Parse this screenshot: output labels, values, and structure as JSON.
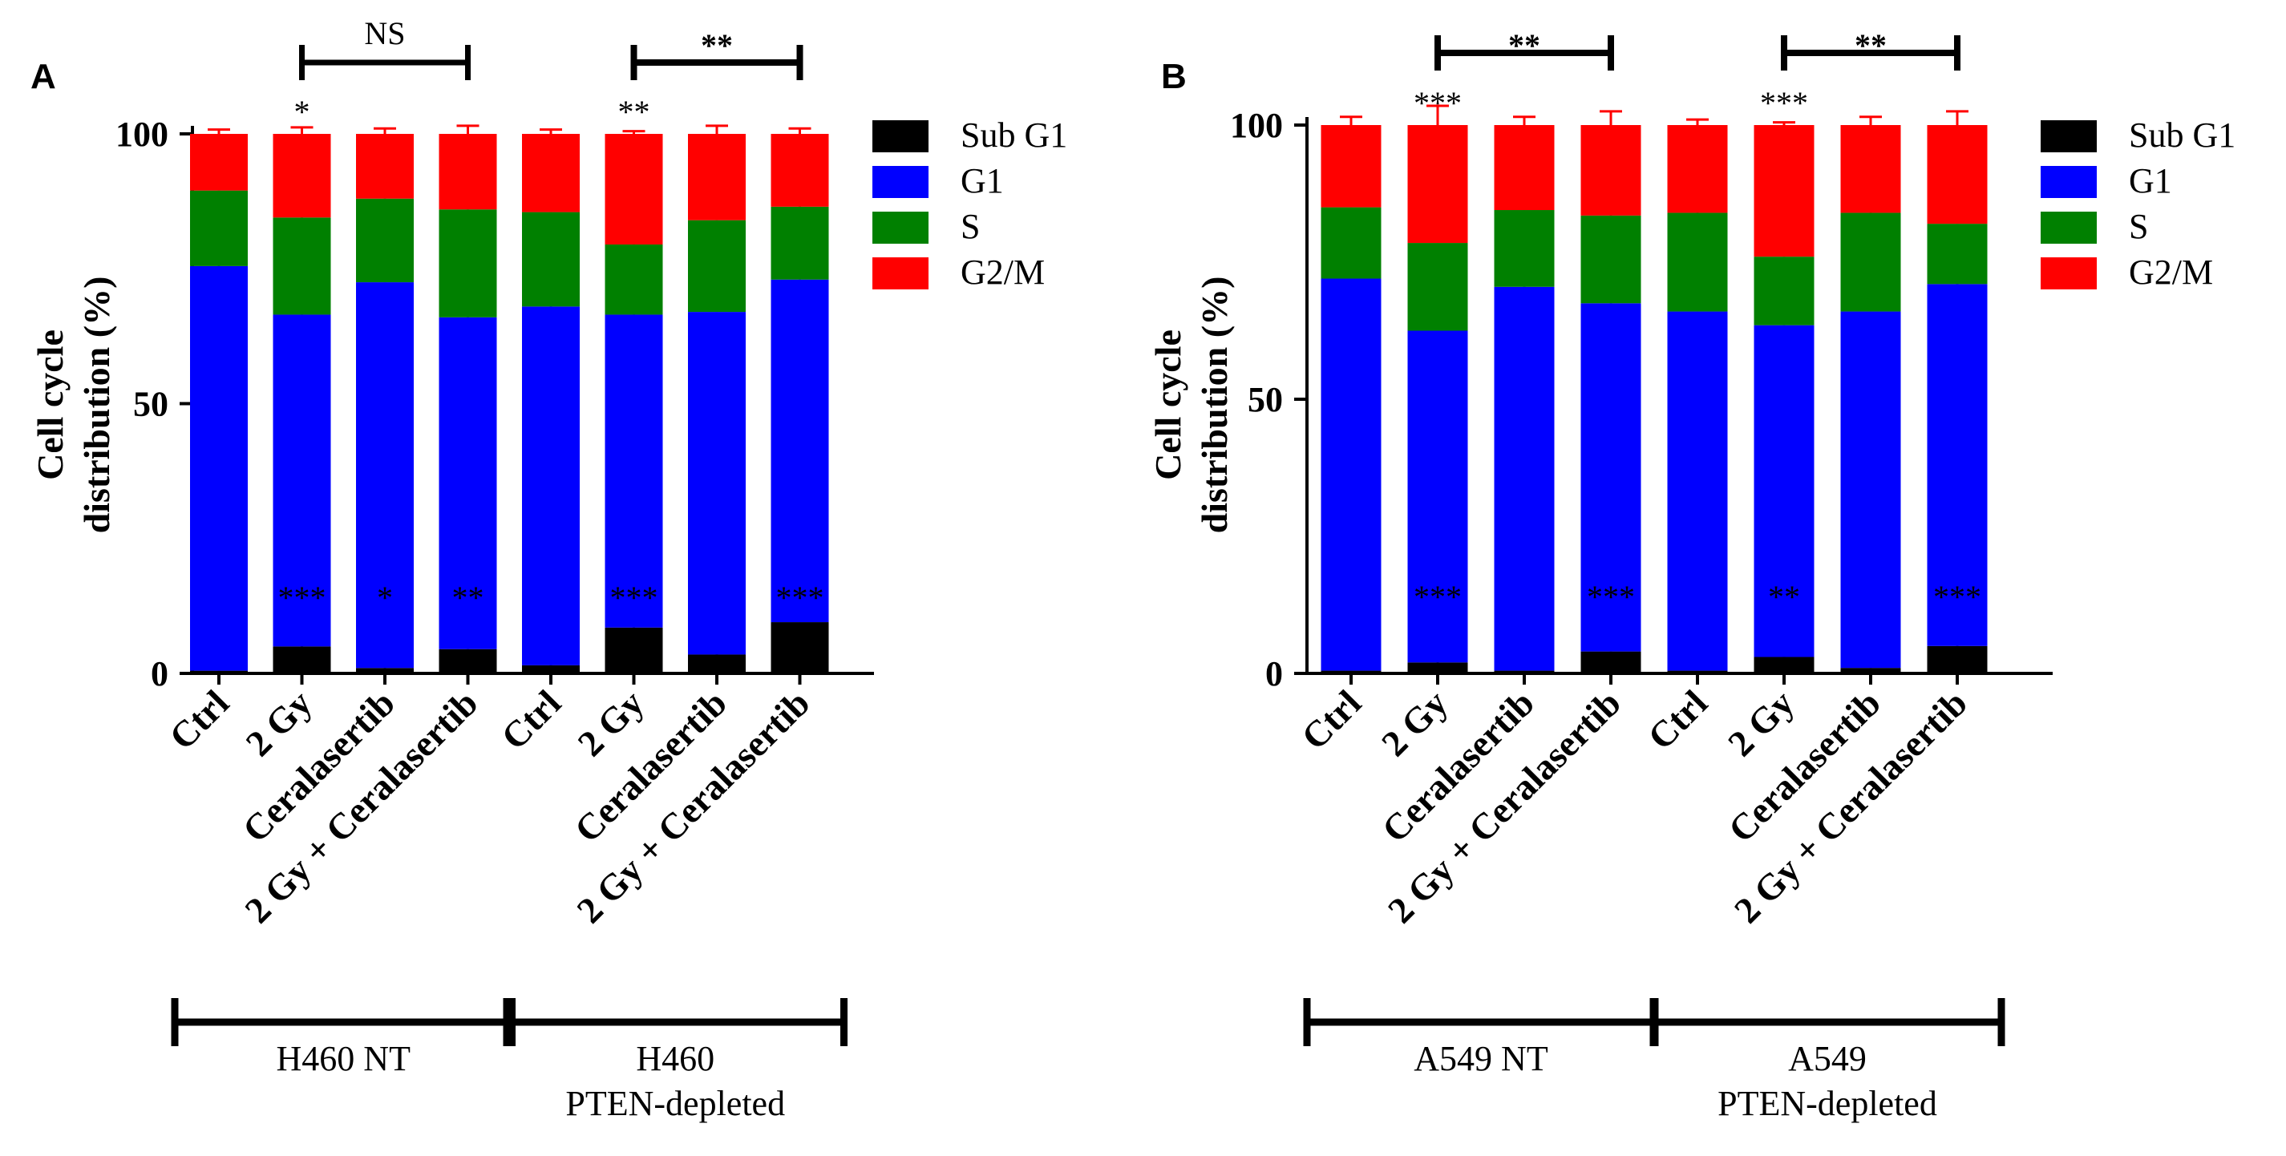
{
  "colors": {
    "Sub G1": "#000000",
    "G1": "#0000ff",
    "S": "#008000",
    "G2/M": "#ff0000"
  },
  "legend": [
    "Sub G1",
    "G1",
    "S",
    "G2/M"
  ],
  "chart_data": [
    {
      "panel": "A",
      "type": "bar",
      "stacked": true,
      "ylabel": [
        "Cell cycle",
        "distribution (%)"
      ],
      "ylim": [
        0,
        100
      ],
      "yticks": [
        0,
        50,
        100
      ],
      "legend_position": "top-right",
      "categories": [
        "Ctrl",
        "2 Gy",
        "Ceralasertib",
        "2 Gy + Ceralasertib",
        "Ctrl",
        "2 Gy",
        "Ceralasertib",
        "2 Gy + Ceralasertib"
      ],
      "series": [
        {
          "name": "Sub G1",
          "values": [
            0.5,
            5,
            1,
            4.5,
            1.5,
            8.5,
            3.5,
            9.5
          ],
          "errors": [
            0.5,
            0.8,
            0.5,
            1.2,
            0.3,
            1.2,
            0.4,
            1.5
          ]
        },
        {
          "name": "G1",
          "values": [
            75,
            61.5,
            71.5,
            61.5,
            66.5,
            58,
            63.5,
            63.5
          ],
          "errors": [
            2.5,
            1.5,
            1.2,
            1.3,
            1.5,
            1.2,
            1.5,
            0.8
          ]
        },
        {
          "name": "S",
          "values": [
            14,
            18,
            15.5,
            20,
            17.5,
            13,
            17,
            13.5
          ],
          "errors": [
            1.5,
            1.0,
            1.0,
            0.8,
            0.8,
            1.5,
            0.5,
            0.5
          ]
        },
        {
          "name": "G2/M",
          "values": [
            10.5,
            15.5,
            12,
            14,
            14.5,
            20.5,
            16,
            13.5
          ],
          "errors": [
            0.8,
            1.2,
            1.0,
            1.5,
            0.8,
            0.5,
            1.5,
            1.0
          ]
        }
      ],
      "top_sig": [
        "",
        "*",
        "",
        "",
        "",
        "**",
        "",
        ""
      ],
      "bottom_sig": [
        "",
        "***",
        "*",
        "**",
        "",
        "***",
        "",
        "***"
      ],
      "brackets": [
        {
          "from": 1,
          "to": 3,
          "label": "NS",
          "bold": false
        },
        {
          "from": 5,
          "to": 7,
          "label": "**",
          "bold": true
        }
      ],
      "groups": [
        {
          "from": 0,
          "to": 3,
          "label": [
            "H460 NT"
          ]
        },
        {
          "from": 4,
          "to": 7,
          "label": [
            "H460",
            "PTEN-depleted"
          ]
        }
      ]
    },
    {
      "panel": "B",
      "type": "bar",
      "stacked": true,
      "ylabel": [
        "Cell cycle",
        "distribution (%)"
      ],
      "ylim": [
        0,
        100
      ],
      "yticks": [
        0,
        50,
        100
      ],
      "legend_position": "top-right",
      "categories": [
        "Ctrl",
        "2 Gy",
        "Ceralasertib",
        "2 Gy + Ceralasertib",
        "Ctrl",
        "2 Gy",
        "Ceralasertib",
        "2 Gy + Ceralasertib"
      ],
      "series": [
        {
          "name": "Sub G1",
          "values": [
            0.5,
            2,
            0.5,
            4,
            0.5,
            3,
            1,
            5
          ],
          "errors": [
            1.5,
            0.8,
            1.0,
            0.5,
            2.5,
            0.8,
            1.0,
            1.5
          ]
        },
        {
          "name": "G1",
          "values": [
            71.5,
            60.5,
            70,
            63.5,
            65.5,
            60.5,
            65,
            66
          ],
          "errors": [
            0.5,
            1.5,
            0.8,
            1.0,
            3.0,
            0.5,
            1.0,
            2.0
          ]
        },
        {
          "name": "S",
          "values": [
            13,
            16,
            14,
            16,
            18,
            12.5,
            18,
            11
          ],
          "errors": [
            0.5,
            1.5,
            0.5,
            1.0,
            0.5,
            2.0,
            2.0,
            1.0
          ]
        },
        {
          "name": "G2/M",
          "values": [
            15,
            21.5,
            15.5,
            16.5,
            16,
            24,
            16,
            18
          ],
          "errors": [
            1.5,
            3.5,
            1.5,
            2.5,
            1.0,
            0.5,
            1.5,
            2.5
          ]
        }
      ],
      "top_sig": [
        "",
        "***",
        "",
        "",
        "",
        "***",
        "",
        ""
      ],
      "bottom_sig": [
        "",
        "***",
        "",
        "***",
        "",
        "**",
        "",
        "***"
      ],
      "brackets": [
        {
          "from": 1,
          "to": 3,
          "label": "**",
          "bold": true
        },
        {
          "from": 5,
          "to": 7,
          "label": "**",
          "bold": true
        }
      ],
      "groups": [
        {
          "from": 0,
          "to": 3,
          "label": [
            "A549 NT"
          ]
        },
        {
          "from": 4,
          "to": 7,
          "label": [
            "A549",
            "PTEN-depleted"
          ]
        }
      ]
    }
  ]
}
